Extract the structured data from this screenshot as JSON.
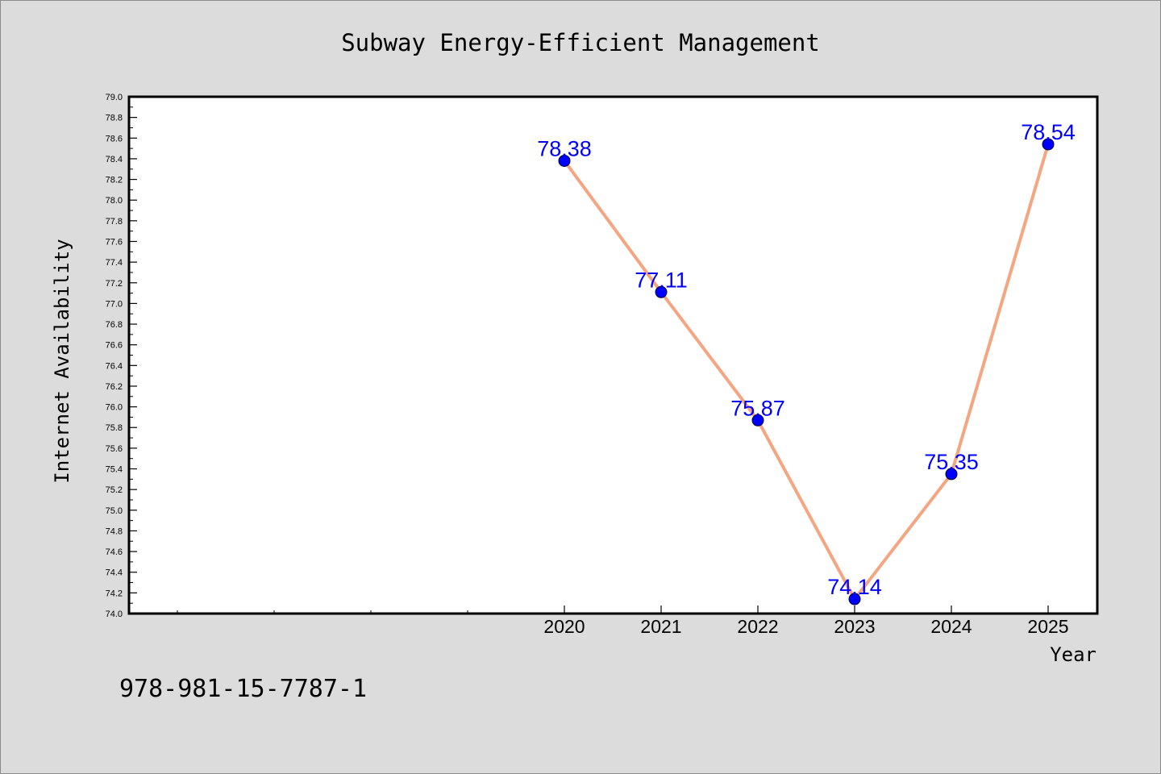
{
  "chart_data": {
    "type": "line",
    "title": "Subway Energy-Efficient Management",
    "xlabel": "Year",
    "ylabel": "Internet Availability",
    "categories": [
      "2020",
      "2021",
      "2022",
      "2023",
      "2024",
      "2025"
    ],
    "series": [
      {
        "values": [
          78.38,
          77.11,
          75.87,
          74.14,
          75.35,
          78.54
        ],
        "data_labels": [
          "78.38",
          "77.11",
          "75.87",
          "74.14",
          "75.35",
          "78.54"
        ],
        "line_color": "#f4a582",
        "marker_color": "#0000ff"
      }
    ],
    "ylim": [
      74.0,
      79.0
    ],
    "yticks": [
      "74.0",
      "74.2",
      "74.4",
      "74.6",
      "74.8",
      "75.0",
      "75.2",
      "75.4",
      "75.6",
      "75.8",
      "76.0",
      "76.2",
      "76.4",
      "76.6",
      "76.8",
      "77.0",
      "77.2",
      "77.4",
      "77.6",
      "77.8",
      "78.0",
      "78.2",
      "78.4",
      "78.6",
      "78.8",
      "79.0"
    ],
    "grid": false,
    "legend": "none",
    "label_color": "#0000ff",
    "plot_background": "#ffffff",
    "page_background": "#dcdcdc"
  },
  "footer": {
    "isbn": "978-981-15-7787-1"
  }
}
